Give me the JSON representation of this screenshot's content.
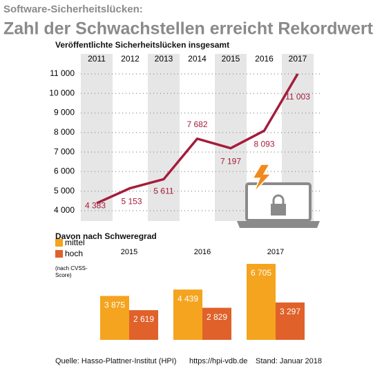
{
  "header": {
    "kicker": "Software-Sicherheitslücken:",
    "title": "Zahl der Schwachstellen erreicht Rekordwert"
  },
  "chart_data": [
    {
      "type": "line",
      "title": "Veröffentlichte Sicherheitslücken insgesamt",
      "categories": [
        "2011",
        "2012",
        "2013",
        "2014",
        "2015",
        "2016",
        "2017"
      ],
      "values": [
        4383,
        5153,
        5611,
        7682,
        7197,
        8093,
        11003
      ],
      "value_labels": [
        "4 383",
        "5 153",
        "5 611",
        "7 682",
        "7 197",
        "8 093",
        "11 003"
      ],
      "color": "#a51c3b",
      "ylim": [
        4000,
        11000
      ],
      "yticks": [
        {
          "value": 4000,
          "label": "4 000"
        },
        {
          "value": 5000,
          "label": "5 000"
        },
        {
          "value": 6000,
          "label": "6 000"
        },
        {
          "value": 7000,
          "label": "7 000"
        },
        {
          "value": 8000,
          "label": "8 000"
        },
        {
          "value": 9000,
          "label": "9 000"
        },
        {
          "value": 10000,
          "label": "10 000"
        },
        {
          "value": 11000,
          "label": "11 000"
        }
      ],
      "grid": true
    },
    {
      "type": "bar",
      "title": "Davon nach Schweregrad",
      "categories": [
        "2015",
        "2016",
        "2017"
      ],
      "series": [
        {
          "name": "mittel",
          "color": "#f4a41e",
          "values": [
            3875,
            4439,
            6705
          ],
          "value_labels": [
            "3 875",
            "4 439",
            "6 705"
          ]
        },
        {
          "name": "hoch",
          "color": "#e0612a",
          "values": [
            2619,
            2829,
            3297
          ],
          "value_labels": [
            "2 619",
            "2 829",
            "3 297"
          ]
        }
      ],
      "legend_note": [
        "(nach CVSS-",
        "Score)"
      ]
    }
  ],
  "footer": {
    "source": "Quelle: Hasso-Plattner-Institut (HPI)",
    "url": "https://hpi-vdb.de",
    "date": "Stand: Januar 2018"
  }
}
